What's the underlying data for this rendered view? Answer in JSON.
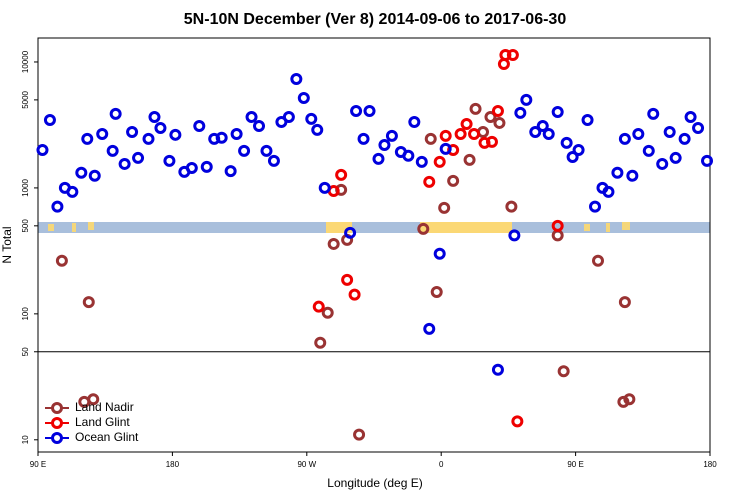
{
  "chart_data": {
    "type": "scatter",
    "title": "5N-10N December (Ver 8)   2014-09-06 to 2017-06-30",
    "x_label": "Longitude (deg E)",
    "y_label": "N Total",
    "y_scale": "log",
    "xlim": [
      90,
      540
    ],
    "ylim": [
      8,
      15500
    ],
    "xticks": [
      {
        "value": 90,
        "label": "90 E"
      },
      180,
      {
        "value": 270,
        "label": "90 W"
      },
      {
        "value": 360,
        "label": "0"
      },
      {
        "value": 450,
        "label": "90 E"
      },
      {
        "value": 540,
        "label": "180"
      }
    ],
    "yticks": [
      10,
      50,
      100,
      500,
      1000,
      5000,
      10000
    ],
    "reference_line": 50,
    "legend": "bottom-left",
    "series": [
      {
        "name": "Land Nadir",
        "color": "#993333",
        "x": [
          106,
          124,
          121,
          127,
          279,
          284,
          288,
          293,
          297,
          305,
          348,
          353,
          357,
          362,
          368,
          379,
          383,
          388,
          393,
          399,
          407,
          438,
          442,
          465,
          483,
          482,
          486
        ],
        "values": [
          264,
          124,
          20,
          21,
          59,
          102,
          359,
          964,
          387,
          11,
          473,
          2450,
          149,
          694,
          1137,
          1670,
          4240,
          2780,
          3660,
          3280,
          710,
          420,
          35,
          264,
          124,
          20,
          21
        ]
      },
      {
        "name": "Land Glint",
        "color": "#ee0000",
        "x": [
          278,
          288,
          293,
          297,
          302,
          352,
          359,
          363,
          368,
          373,
          377,
          382,
          389,
          394,
          398,
          402,
          403,
          408,
          411,
          438
        ],
        "values": [
          114,
          946,
          1268,
          186,
          142,
          1116,
          1610,
          2590,
          2000,
          2680,
          3220,
          2680,
          2280,
          2320,
          4080,
          9640,
          11370,
          11370,
          14,
          500
        ]
      },
      {
        "name": "Ocean Glint",
        "color": "#0000dd",
        "x": [
          93,
          98,
          103,
          108,
          113,
          119,
          123,
          128,
          133,
          140,
          142,
          148,
          153,
          157,
          164,
          168,
          172,
          178,
          182,
          188,
          193,
          198,
          203,
          208,
          213,
          219,
          223,
          228,
          233,
          238,
          243,
          248,
          253,
          258,
          263,
          268,
          273,
          277,
          282,
          299,
          303,
          308,
          312,
          318,
          322,
          327,
          333,
          338,
          342,
          347,
          352,
          359,
          363,
          398,
          409,
          413,
          417,
          423,
          428,
          432,
          438,
          444,
          448,
          452,
          458,
          463,
          468,
          472,
          478,
          483,
          488,
          492,
          499,
          502,
          508,
          513,
          517,
          523,
          527,
          532,
          538
        ],
        "values": [
          2000,
          3460,
          710,
          1000,
          930,
          1320,
          2450,
          1250,
          2680,
          1970,
          3870,
          1550,
          2780,
          1730,
          2450,
          3660,
          2990,
          1640,
          2640,
          1340,
          1440,
          3100,
          1470,
          2450,
          2500,
          1360,
          2680,
          1970,
          3660,
          3100,
          1970,
          1640,
          3340,
          3660,
          7330,
          5180,
          3530,
          2890,
          1000,
          440,
          4080,
          2450,
          4080,
          1700,
          2190,
          2590,
          1930,
          1800,
          3340,
          1610,
          76,
          300,
          2040,
          36,
          420,
          3940,
          5000,
          2780,
          3100,
          2680,
          4010,
          2280,
          1760,
          2000,
          3460,
          710,
          1000,
          930,
          1320,
          2450,
          1250,
          2680,
          1970,
          3870,
          1550,
          2780,
          1730,
          2450,
          3660,
          2990,
          1640
        ]
      }
    ]
  }
}
